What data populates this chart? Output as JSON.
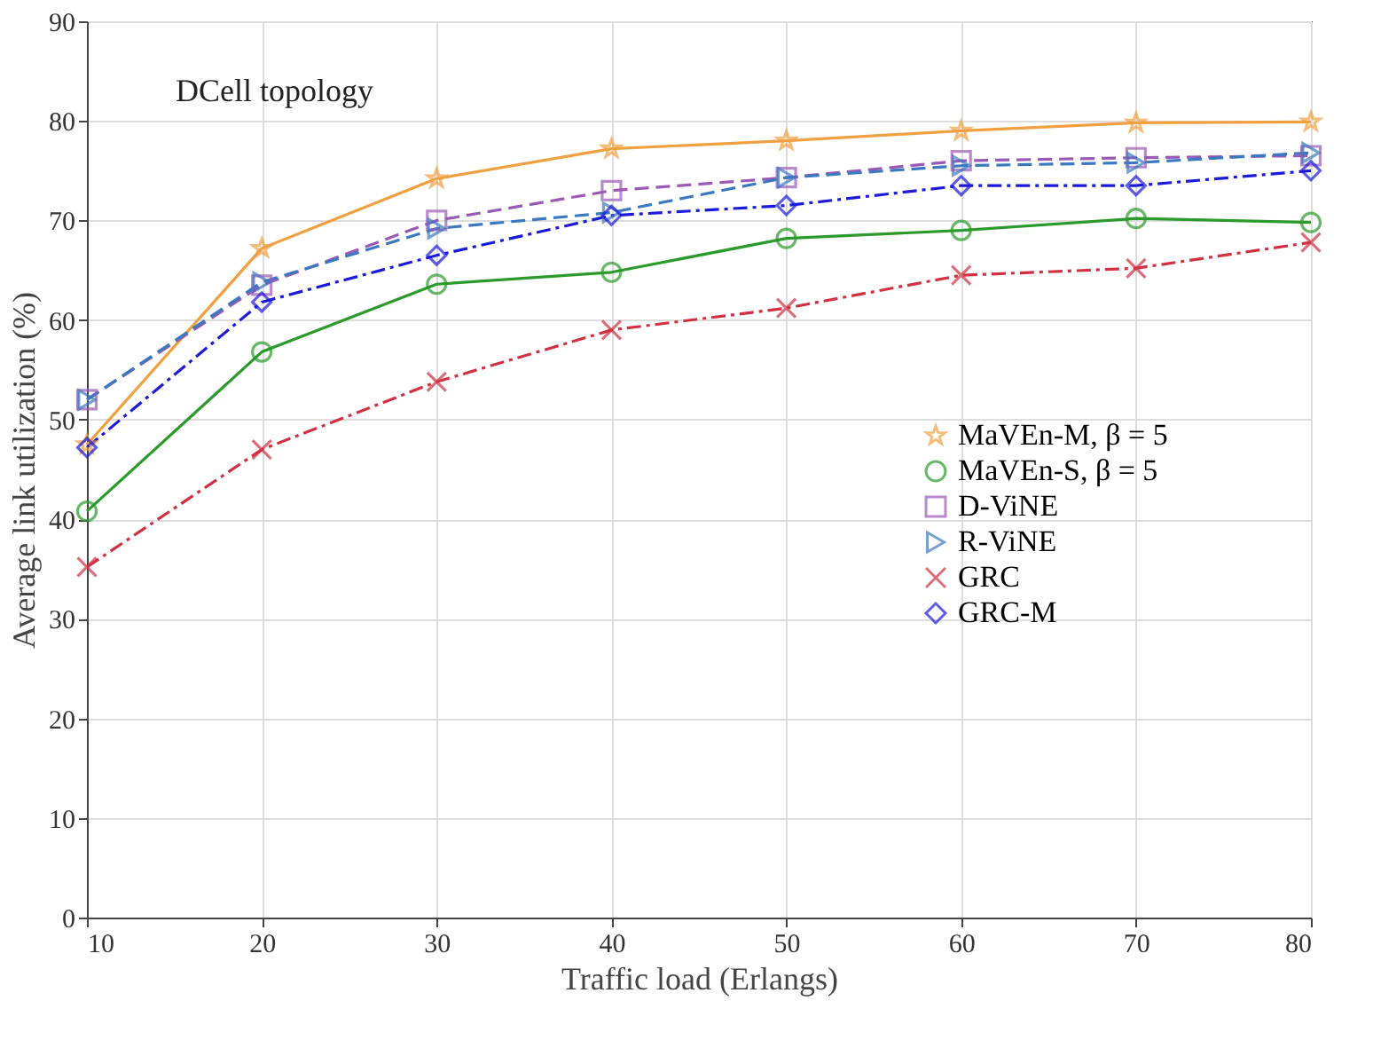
{
  "chart_data": {
    "type": "line",
    "annotations": [
      "DCell topology"
    ],
    "xlabel": "Traffic load (Erlangs)",
    "ylabel": "Average link utilization (%)",
    "x": [
      10,
      20,
      30,
      40,
      50,
      60,
      70,
      80
    ],
    "xlim": [
      10,
      80
    ],
    "xticks": [
      10,
      20,
      30,
      40,
      50,
      60,
      70,
      80
    ],
    "ylim": [
      0,
      90
    ],
    "yticks": [
      0,
      10,
      20,
      30,
      40,
      50,
      60,
      70,
      80,
      90
    ],
    "grid": true,
    "legend": "right",
    "series": [
      {
        "name": "MaVEn-M, β = 5",
        "color": "#f0a040",
        "marker": "star",
        "line_style": "solid",
        "values": [
          47.5,
          67.2,
          74.2,
          77.2,
          78,
          79,
          79.8,
          79.9
        ]
      },
      {
        "name": "MaVEn-S, β = 5",
        "color": "#2a9a2a",
        "marker": "circle",
        "line_style": "solid",
        "values": [
          40.8,
          56.8,
          63.6,
          64.8,
          68.2,
          69,
          70.2,
          69.8
        ]
      },
      {
        "name": "D-ViNE",
        "color": "#9b59b6",
        "marker": "square",
        "line_style": "dashed",
        "values": [
          52,
          63.5,
          70,
          73,
          74.3,
          76,
          76.3,
          76.5
        ]
      },
      {
        "name": "R-ViNE",
        "color": "#3a78c0",
        "marker": "triangle",
        "line_style": "dashed",
        "values": [
          52,
          63.8,
          69.2,
          70.8,
          74.3,
          75.5,
          75.8,
          76.8
        ]
      },
      {
        "name": "GRC",
        "color": "#d03040",
        "marker": "cross",
        "line_style": "dashdot",
        "values": [
          35.2,
          47,
          53.8,
          59,
          61.2,
          64.5,
          65.2,
          67.8
        ]
      },
      {
        "name": "GRC-M",
        "color": "#1a1adc",
        "marker": "diamond",
        "line_style": "dashdot",
        "values": [
          47.2,
          61.8,
          66.5,
          70.5,
          71.5,
          73.5,
          73.5,
          75
        ]
      }
    ]
  }
}
